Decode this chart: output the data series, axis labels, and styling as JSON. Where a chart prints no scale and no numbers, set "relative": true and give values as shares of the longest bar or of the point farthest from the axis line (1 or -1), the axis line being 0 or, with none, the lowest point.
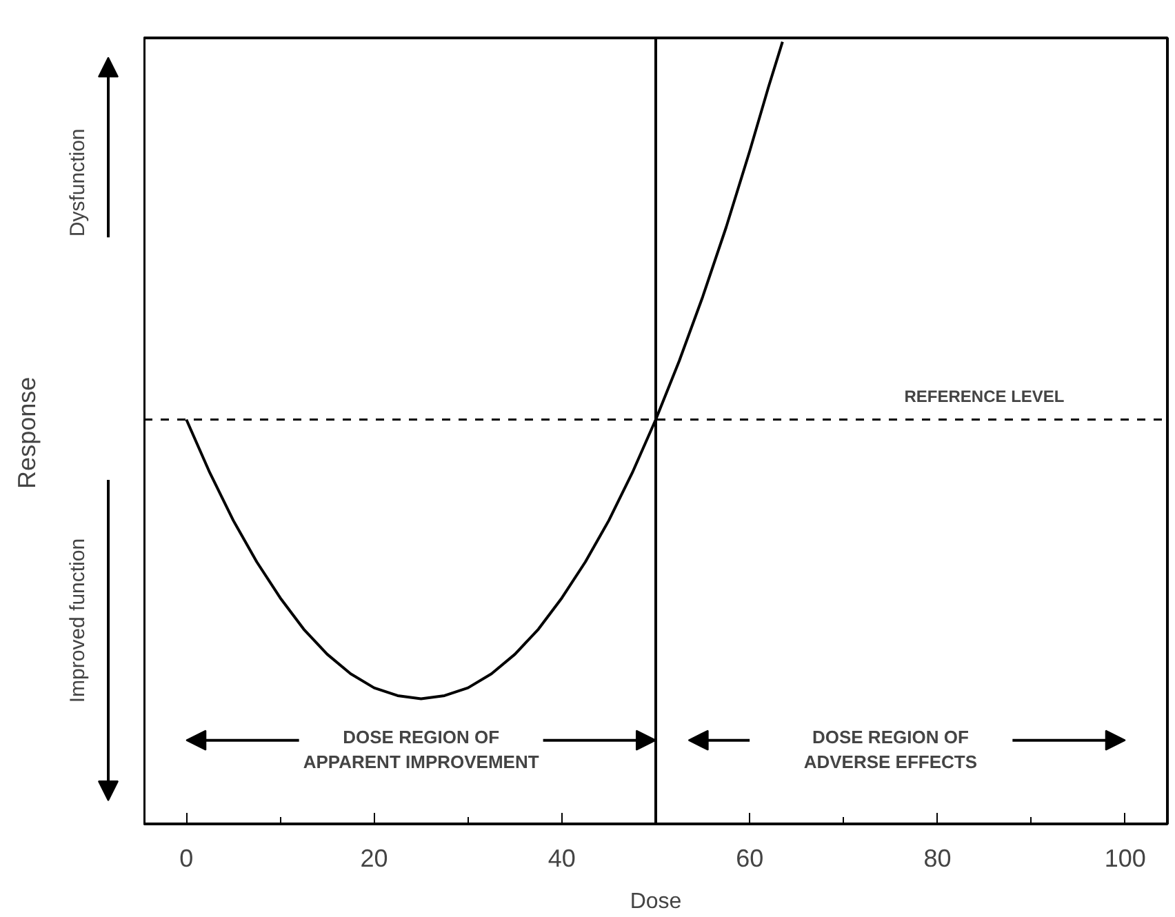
{
  "chart_data": {
    "type": "line",
    "xlabel": "Dose",
    "ylabel": "Response",
    "relative": true,
    "marker": "none",
    "line_style": "solid",
    "x": [
      0,
      2.5,
      5,
      7.5,
      10,
      12.5,
      15,
      17.5,
      20,
      22.5,
      25,
      27.5,
      30,
      32.5,
      35,
      37.5,
      40,
      42.5,
      45,
      47.5,
      50,
      52.5,
      55,
      57.5,
      60,
      62,
      63.5
    ],
    "series": [
      {
        "color": "#000000",
        "values": [
          0.517,
          0.449,
          0.388,
          0.335,
          0.289,
          0.249,
          0.217,
          0.192,
          0.174,
          0.164,
          0.16,
          0.164,
          0.174,
          0.192,
          0.217,
          0.249,
          0.289,
          0.335,
          0.388,
          0.449,
          0.517,
          0.592,
          0.674,
          0.763,
          0.86,
          0.942,
          1.0
        ]
      }
    ],
    "xlim": [
      -4.5,
      104.5
    ],
    "xticks": [
      0,
      20,
      40,
      60,
      80,
      100
    ],
    "ref_lines": [
      {
        "axis": "y",
        "value": 0.517,
        "label": "REFERENCE LEVEL",
        "line_style": "dashed",
        "color": "#000000"
      },
      {
        "axis": "x",
        "value": 50,
        "color": "#000000"
      }
    ],
    "annotations": [
      "Dysfunction",
      "Improved function",
      "DOSE REGION OF\nAPPARENT IMPROVEMENT",
      "DOSE REGION OF\nADVERSE EFFECTS"
    ]
  }
}
